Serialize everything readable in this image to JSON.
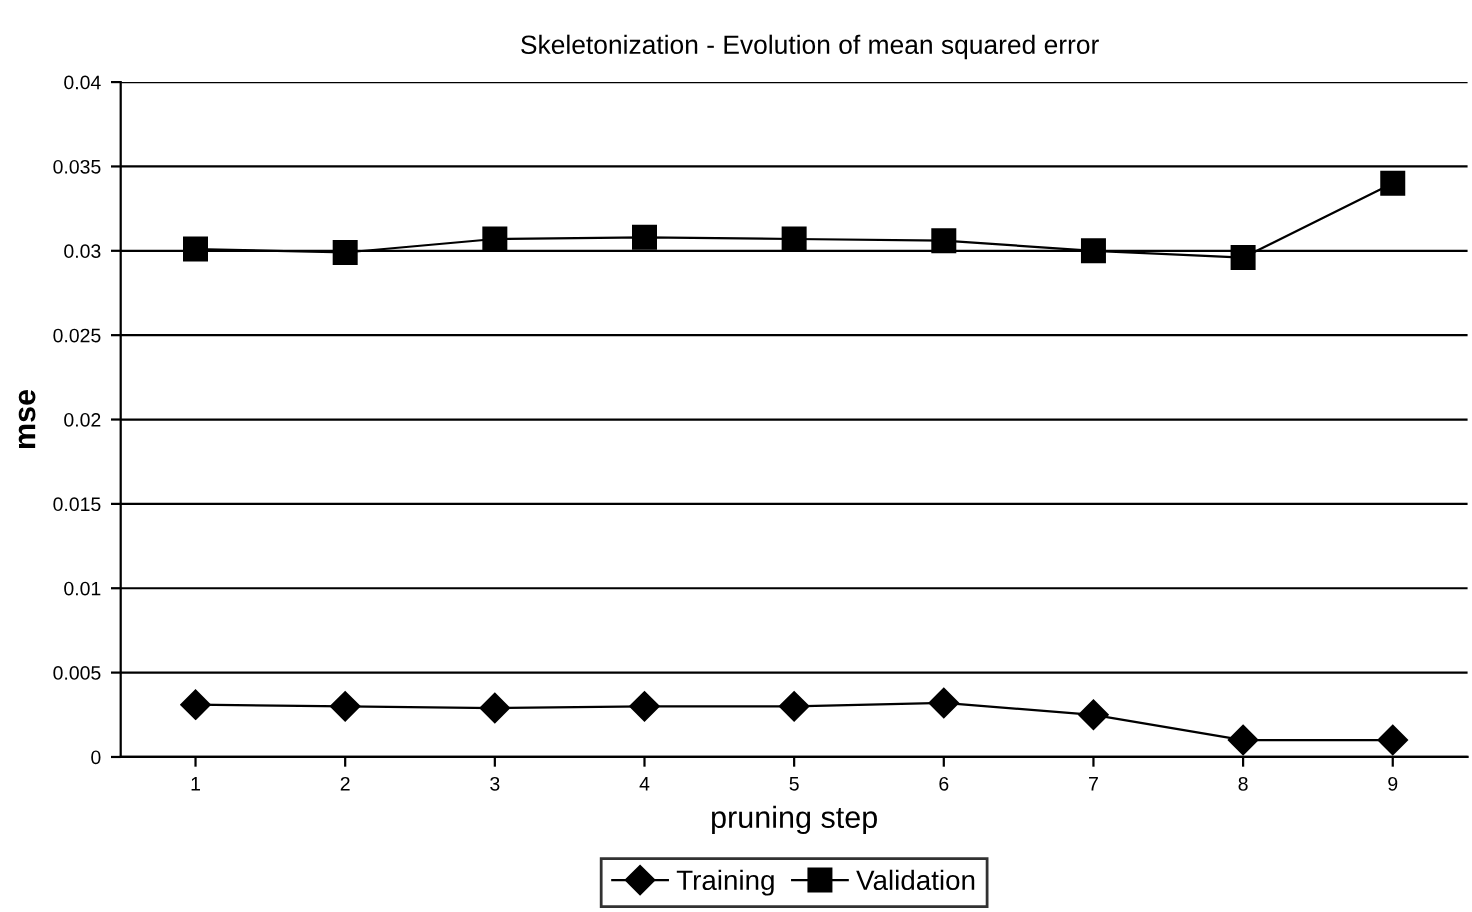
{
  "chart_data": {
    "type": "line",
    "title": "Skeletonization - Evolution of mean squared error",
    "xlabel": "pruning step",
    "ylabel": "mse",
    "categories": [
      "1",
      "2",
      "3",
      "4",
      "5",
      "6",
      "7",
      "8",
      "9"
    ],
    "series": [
      {
        "name": "Training",
        "color": "#000000",
        "marker": "diamond",
        "values": [
          0.0031,
          0.003,
          0.0029,
          0.003,
          0.003,
          0.0032,
          0.0025,
          0.001,
          0.001
        ]
      },
      {
        "name": "Validation",
        "color": "#000000",
        "marker": "square",
        "values": [
          0.0301,
          0.0299,
          0.0307,
          0.0308,
          0.0307,
          0.0306,
          0.03,
          0.0296,
          0.034
        ]
      }
    ],
    "ylim": [
      0,
      0.04
    ],
    "yticks": [
      0,
      0.005,
      0.01,
      0.015,
      0.02,
      0.025,
      0.03,
      0.035,
      0.04
    ],
    "grid": "y",
    "legend": "bottom",
    "line_style": "solid"
  }
}
